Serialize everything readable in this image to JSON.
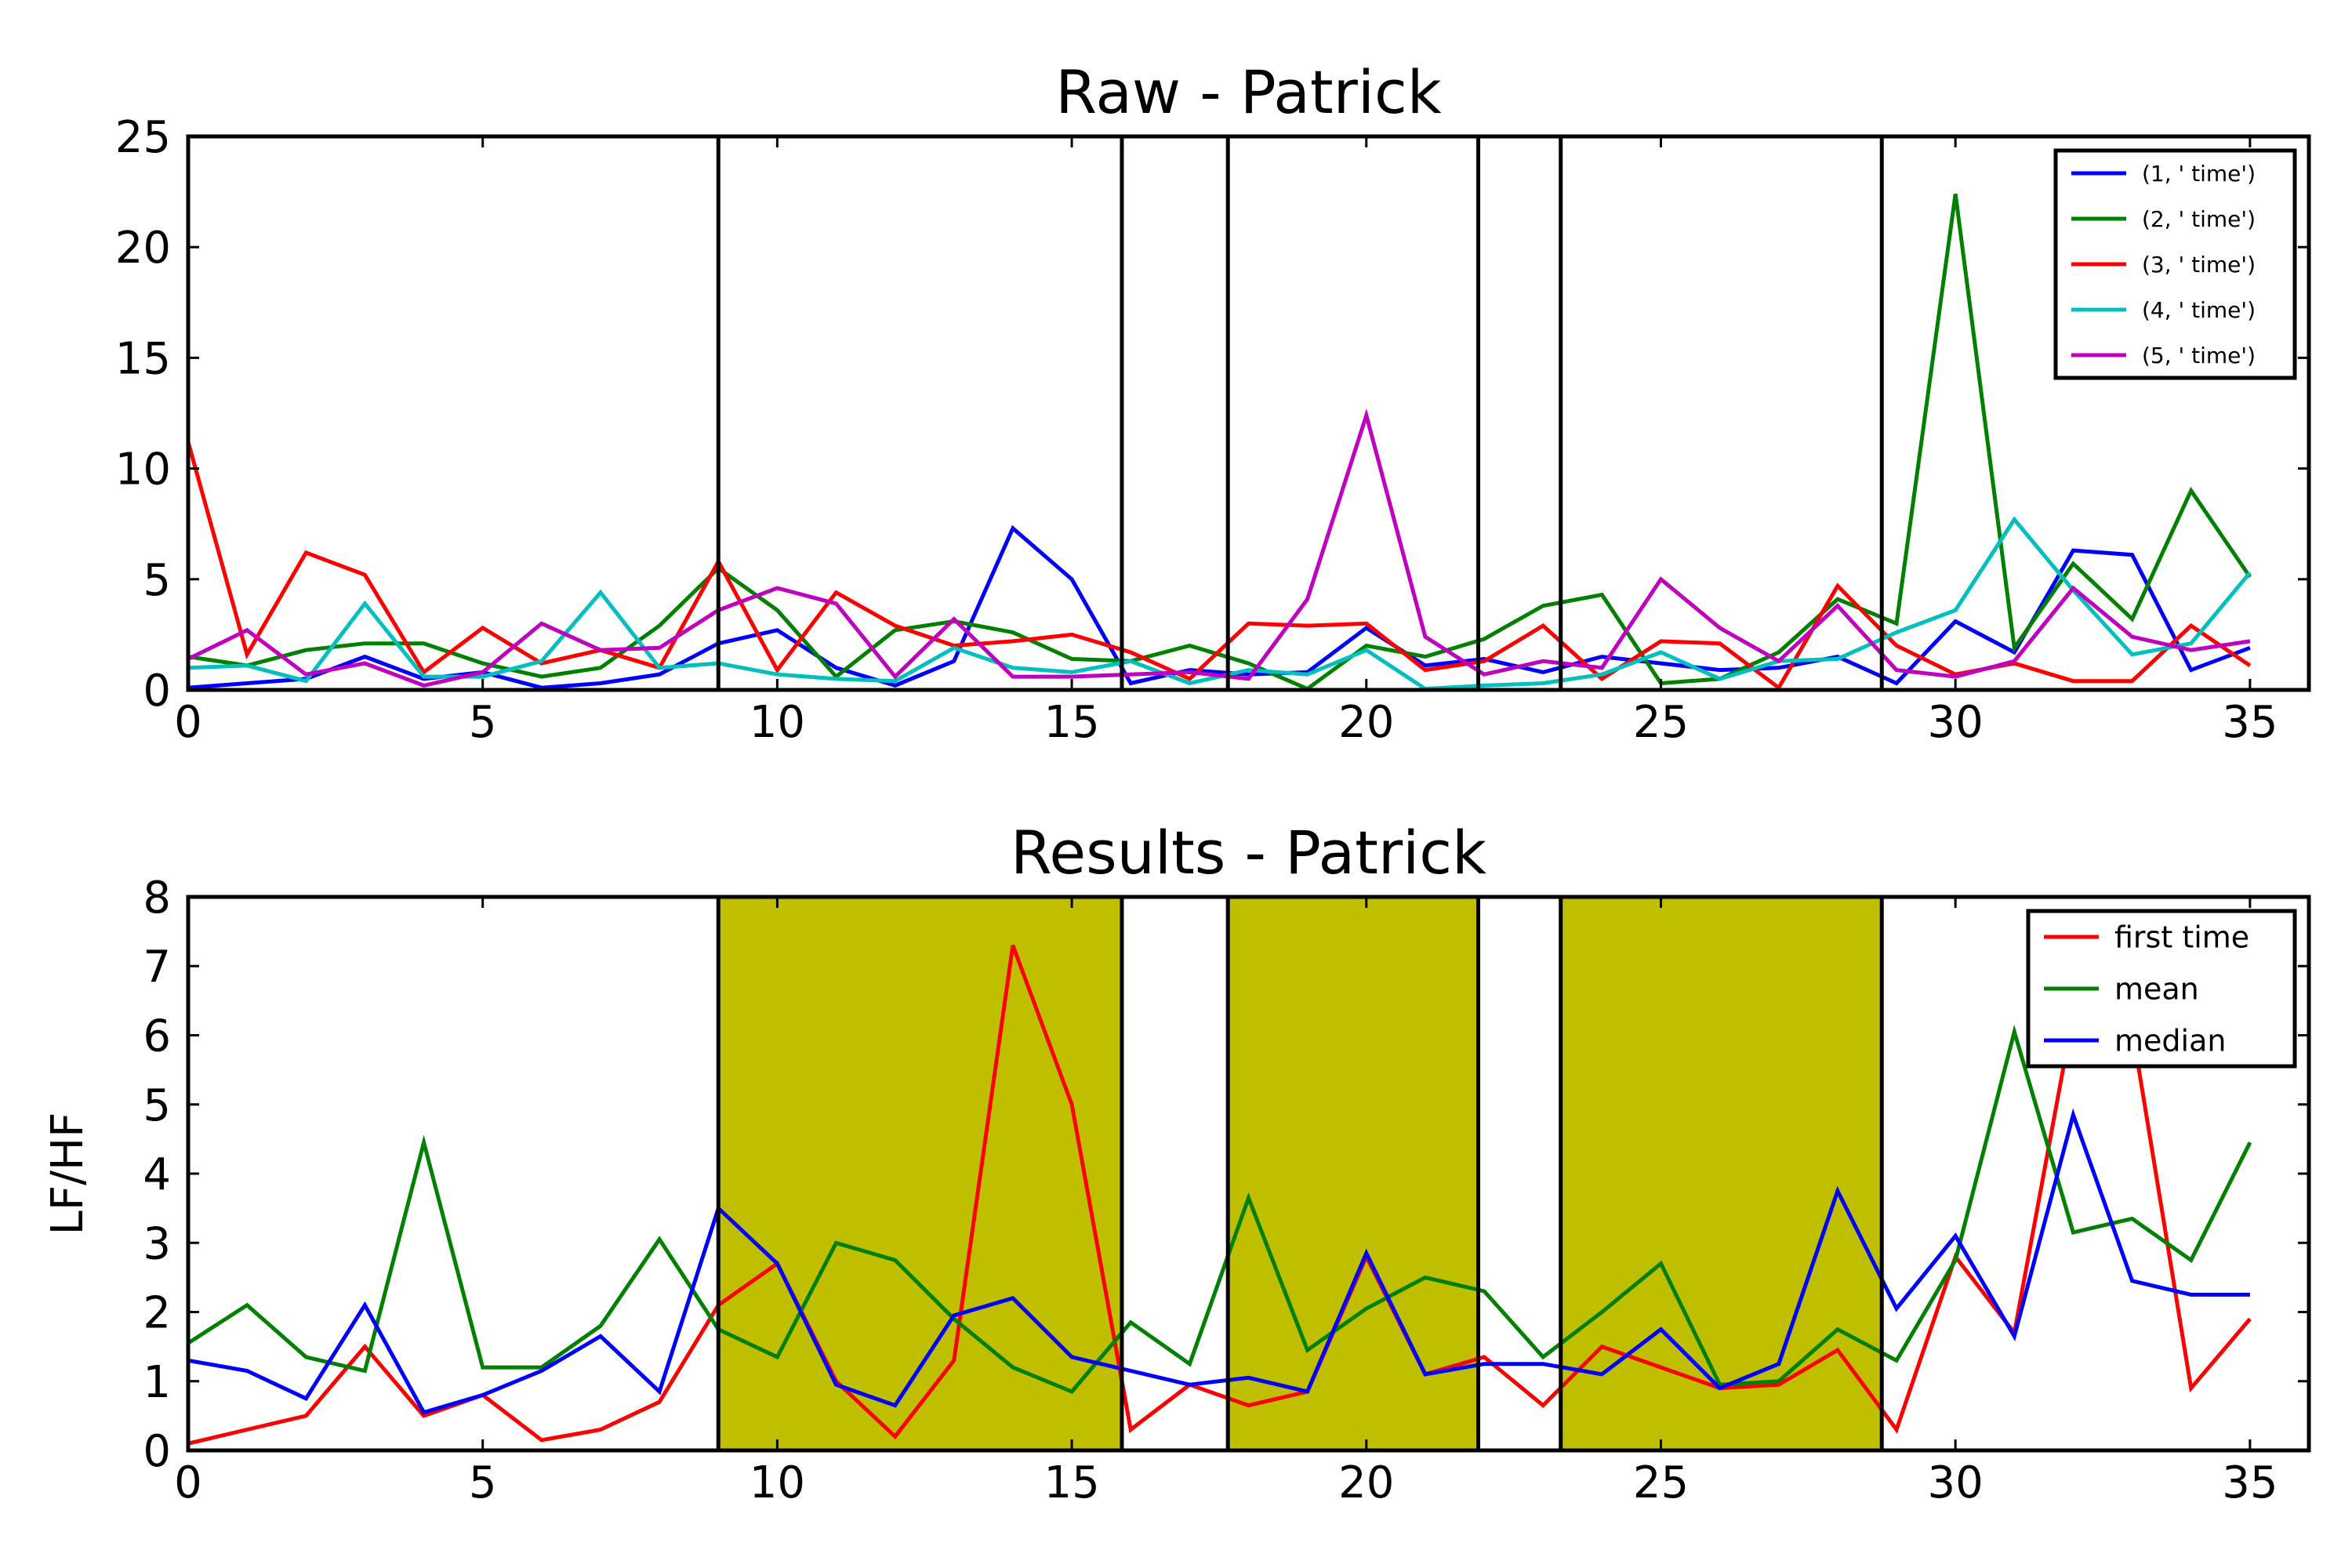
{
  "chart_data": [
    {
      "type": "line",
      "title": "Raw - Patrick",
      "xlabel": "",
      "ylabel": "",
      "xlim": [
        0,
        36
      ],
      "ylim": [
        0,
        25
      ],
      "xticks": [
        0,
        5,
        10,
        15,
        20,
        25,
        30,
        35
      ],
      "yticks": [
        0,
        5,
        10,
        15,
        20,
        25
      ],
      "grid": false,
      "legend": "top-right",
      "vlines": [
        9,
        15.85,
        17.65,
        21.9,
        23.3,
        28.75
      ],
      "x": [
        0,
        1,
        2,
        3,
        4,
        5,
        6,
        7,
        8,
        9,
        10,
        11,
        12,
        13,
        14,
        15,
        16,
        17,
        18,
        19,
        20,
        21,
        22,
        23,
        24,
        25,
        26,
        27,
        28,
        29,
        30,
        31,
        32,
        33,
        34,
        35
      ],
      "series": [
        {
          "name": "(1, ' time')",
          "color": "#0000ff",
          "values": [
            0.1,
            0.3,
            0.5,
            1.5,
            0.5,
            0.8,
            0.1,
            0.3,
            0.7,
            2.1,
            2.7,
            1.0,
            0.2,
            1.3,
            7.3,
            5.0,
            0.3,
            0.9,
            0.7,
            0.8,
            2.8,
            1.1,
            1.4,
            0.8,
            1.5,
            1.2,
            0.9,
            1.0,
            1.5,
            0.3,
            3.1,
            1.7,
            6.3,
            6.1,
            0.9,
            1.9
          ]
        },
        {
          "name": "(2, ' time')",
          "color": "#008000",
          "values": [
            1.5,
            1.1,
            1.8,
            2.1,
            2.1,
            1.2,
            0.6,
            1.0,
            2.9,
            5.5,
            3.6,
            0.6,
            2.7,
            3.1,
            2.6,
            1.4,
            1.3,
            2.0,
            1.2,
            0.05,
            2.0,
            1.5,
            2.3,
            3.8,
            4.3,
            0.3,
            0.5,
            1.7,
            4.1,
            3.0,
            22.4,
            1.9,
            5.7,
            3.2,
            9.0,
            5.1
          ]
        },
        {
          "name": "(3, ' time')",
          "color": "#ff0000",
          "values": [
            11.2,
            1.6,
            6.2,
            5.2,
            0.8,
            2.8,
            1.2,
            1.8,
            1.0,
            5.8,
            0.9,
            4.4,
            2.9,
            2.0,
            2.2,
            2.5,
            1.7,
            0.5,
            3.0,
            2.9,
            3.0,
            0.9,
            1.3,
            2.9,
            0.5,
            2.2,
            2.1,
            0.1,
            4.7,
            2.0,
            0.7,
            1.2,
            0.4,
            0.4,
            2.9,
            1.1
          ]
        },
        {
          "name": "(4, ' time')",
          "color": "#00bfbf",
          "values": [
            1.0,
            1.1,
            0.4,
            3.9,
            0.6,
            0.6,
            1.3,
            4.4,
            1.0,
            1.2,
            0.7,
            0.5,
            0.4,
            1.9,
            1.0,
            0.8,
            1.3,
            0.3,
            0.9,
            0.7,
            1.8,
            0.05,
            0.2,
            0.3,
            0.7,
            1.7,
            0.5,
            1.3,
            1.4,
            2.6,
            3.6,
            7.7,
            4.5,
            1.6,
            2.1,
            5.3
          ]
        },
        {
          "name": "(5, ' time')",
          "color": "#bf00bf",
          "values": [
            1.4,
            2.7,
            0.7,
            1.2,
            0.2,
            0.8,
            3.0,
            1.8,
            1.9,
            3.6,
            4.6,
            3.9,
            0.6,
            3.2,
            0.6,
            0.6,
            0.7,
            0.8,
            0.5,
            4.1,
            12.4,
            2.4,
            0.7,
            1.3,
            1.0,
            5.0,
            2.8,
            1.3,
            3.8,
            0.9,
            0.6,
            1.3,
            4.6,
            2.4,
            1.8,
            2.2
          ]
        }
      ]
    },
    {
      "type": "line",
      "title": "Results - Patrick",
      "xlabel": "",
      "ylabel": "LF/HF",
      "xlim": [
        0,
        36
      ],
      "ylim": [
        0,
        8
      ],
      "xticks": [
        0,
        5,
        10,
        15,
        20,
        25,
        30,
        35
      ],
      "yticks": [
        0,
        1,
        2,
        3,
        4,
        5,
        6,
        7,
        8
      ],
      "grid": false,
      "legend": "top-right",
      "vlines": [
        9,
        15.85,
        17.65,
        21.9,
        23.3,
        28.75
      ],
      "shaded_regions": [
        [
          9,
          15.85
        ],
        [
          17.65,
          21.9
        ],
        [
          23.3,
          28.75
        ]
      ],
      "shade_color": "#bfbf00",
      "x": [
        0,
        1,
        2,
        3,
        4,
        5,
        6,
        7,
        8,
        9,
        10,
        11,
        12,
        13,
        14,
        15,
        16,
        17,
        18,
        19,
        20,
        21,
        22,
        23,
        24,
        25,
        26,
        27,
        28,
        29,
        30,
        31,
        32,
        33,
        34,
        35
      ],
      "series": [
        {
          "name": "first time",
          "color": "#ff0000",
          "values": [
            0.1,
            0.3,
            0.5,
            1.5,
            0.5,
            0.8,
            0.15,
            0.3,
            0.7,
            2.1,
            2.7,
            1.0,
            0.2,
            1.3,
            7.3,
            5.0,
            0.3,
            0.95,
            0.65,
            0.85,
            2.8,
            1.1,
            1.35,
            0.65,
            1.5,
            1.2,
            0.9,
            0.95,
            1.45,
            0.3,
            2.8,
            1.7,
            6.3,
            6.1,
            0.9,
            1.9
          ]
        },
        {
          "name": "mean",
          "color": "#008000",
          "values": [
            1.55,
            2.1,
            1.35,
            1.15,
            4.45,
            1.2,
            1.2,
            1.8,
            3.05,
            1.75,
            1.35,
            3.0,
            2.75,
            1.9,
            1.2,
            0.85,
            1.85,
            1.25,
            3.65,
            1.45,
            2.05,
            2.5,
            2.3,
            1.35,
            2.0,
            2.7,
            0.95,
            1.0,
            1.75,
            1.3,
            2.75,
            6.05,
            3.15,
            3.35,
            2.75,
            4.45
          ]
        },
        {
          "name": "median",
          "color": "#0000ff",
          "values": [
            1.3,
            1.15,
            0.75,
            2.1,
            0.55,
            0.8,
            1.15,
            1.65,
            0.85,
            3.5,
            2.7,
            0.95,
            0.65,
            1.95,
            2.2,
            1.35,
            1.15,
            0.95,
            1.05,
            0.85,
            2.85,
            1.1,
            1.25,
            1.25,
            1.1,
            1.75,
            0.9,
            1.25,
            3.75,
            2.05,
            3.1,
            1.65,
            4.85,
            2.45,
            2.25,
            2.25
          ]
        }
      ]
    }
  ]
}
